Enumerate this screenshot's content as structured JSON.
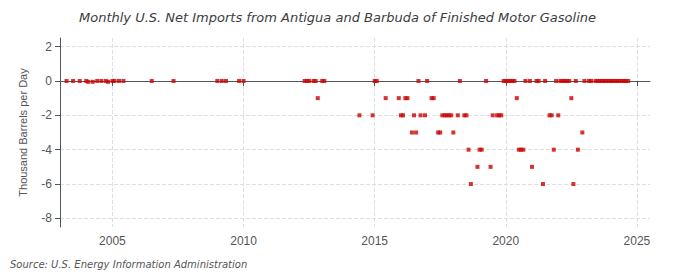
{
  "chart_data": {
    "type": "scatter",
    "title": "Monthly U.S. Net Imports from Antigua and Barbuda of Finished Motor Gasoline",
    "ylabel": "Thousand Barrels per Day",
    "source": "Source: U.S. Energy Information Administration",
    "color": "#cc0000",
    "marker": "square",
    "grid": true,
    "xlim": [
      2003.0,
      2025.5
    ],
    "ylim": [
      -8.5,
      2.5
    ],
    "xticks": [
      2005,
      2010,
      2015,
      2020,
      2025
    ],
    "yticks": [
      -8,
      -6,
      -4,
      -2,
      0,
      2
    ],
    "x": [
      2003.25,
      2003.5,
      2003.75,
      2004.0,
      2004.08,
      2004.25,
      2004.42,
      2004.58,
      2004.75,
      2004.83,
      2005.0,
      2005.08,
      2005.25,
      2005.42,
      2006.5,
      2007.33,
      2009.0,
      2009.17,
      2009.33,
      2009.83,
      2010.0,
      2012.33,
      2012.42,
      2012.5,
      2012.67,
      2012.75,
      2012.83,
      2013.0,
      2013.08,
      2014.42,
      2014.92,
      2015.0,
      2015.08,
      2015.42,
      2015.92,
      2016.0,
      2016.08,
      2016.17,
      2016.25,
      2016.42,
      2016.5,
      2016.58,
      2016.67,
      2016.75,
      2016.92,
      2017.0,
      2017.17,
      2017.25,
      2017.42,
      2017.5,
      2017.58,
      2017.67,
      2017.75,
      2017.83,
      2017.92,
      2018.0,
      2018.17,
      2018.25,
      2018.42,
      2018.5,
      2018.58,
      2018.67,
      2018.92,
      2019.0,
      2019.08,
      2019.25,
      2019.42,
      2019.5,
      2019.67,
      2019.75,
      2019.83,
      2019.92,
      2020.0,
      2020.08,
      2020.17,
      2020.25,
      2020.33,
      2020.42,
      2020.5,
      2020.58,
      2020.67,
      2020.75,
      2020.92,
      2021.0,
      2021.17,
      2021.25,
      2021.42,
      2021.5,
      2021.67,
      2021.75,
      2021.83,
      2021.92,
      2022.0,
      2022.08,
      2022.17,
      2022.25,
      2022.33,
      2022.42,
      2022.5,
      2022.58,
      2022.67,
      2022.75,
      2022.92,
      2023.0,
      2023.17,
      2023.25,
      2023.42,
      2023.5,
      2023.58,
      2023.67,
      2023.75,
      2023.83,
      2023.92,
      2024.0,
      2024.08,
      2024.17,
      2024.25,
      2024.33,
      2024.42,
      2024.5,
      2024.58,
      2024.67
    ],
    "values": [
      0,
      0,
      0,
      0,
      -0.05,
      -0.05,
      0,
      0,
      0,
      -0.05,
      0,
      0,
      0,
      0,
      0,
      0,
      0,
      0,
      0,
      0,
      0,
      0,
      0,
      0,
      0,
      0,
      -1.0,
      0,
      0,
      -2.0,
      -2.0,
      0,
      0,
      -1.0,
      -1.0,
      -2.0,
      -2.0,
      -1.0,
      -1.0,
      -3.0,
      -2.0,
      -3.0,
      0,
      -2.0,
      -2.0,
      0,
      -1.0,
      -1.0,
      -3.0,
      -3.0,
      -2.0,
      -2.0,
      -2.0,
      -2.0,
      -2.0,
      -3.0,
      -2.0,
      0,
      -2.0,
      -2.0,
      -4.0,
      -6.0,
      -5.0,
      -4.0,
      -4.0,
      0,
      -5.0,
      -2.0,
      -2.0,
      -2.0,
      -2.0,
      0,
      0,
      0,
      0,
      0,
      0,
      -1.0,
      -4.0,
      -4.0,
      -4.0,
      0,
      0,
      -5.0,
      0,
      0,
      -6.0,
      0,
      -2.0,
      -2.0,
      -4.0,
      0,
      -2.0,
      0,
      0,
      0,
      0,
      0,
      -1.0,
      -6.0,
      0,
      -4.0,
      -3.0,
      0,
      0,
      0,
      0,
      0,
      0,
      0,
      0,
      0,
      0,
      0,
      0,
      0,
      0,
      0,
      0,
      0,
      0,
      0
    ]
  }
}
